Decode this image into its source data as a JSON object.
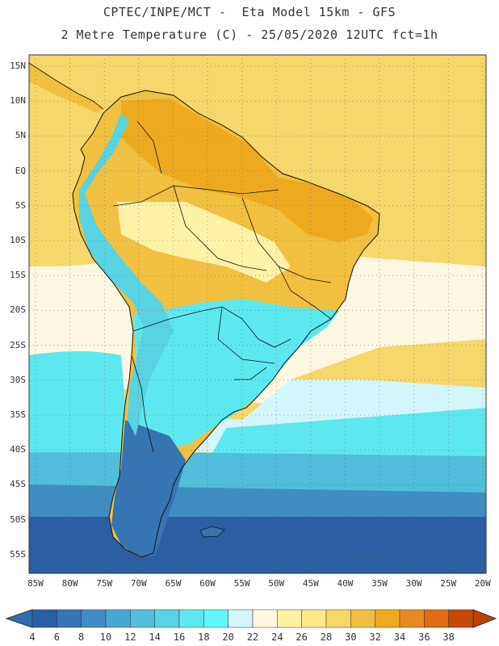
{
  "header": {
    "line1": "CPTEC/INPE/MCT -  Eta Model 15km - GFS",
    "line2": "2 Metre Temperature (C) - 25/05/2020 12UTC fct=1h"
  },
  "map": {
    "lat_labels": [
      "15N",
      "10N",
      "5N",
      "EQ",
      "5S",
      "10S",
      "15S",
      "20S",
      "25S",
      "30S",
      "35S",
      "40S",
      "45S",
      "50S",
      "55S"
    ],
    "lon_labels": [
      "85W",
      "80W",
      "75W",
      "70W",
      "65W",
      "60W",
      "55W",
      "50W",
      "45W",
      "40W",
      "35W",
      "30W",
      "25W",
      "20W"
    ]
  },
  "colorbar": {
    "labels": [
      "4",
      "6",
      "8",
      "10",
      "12",
      "14",
      "16",
      "18",
      "20",
      "22",
      "24",
      "26",
      "28",
      "30",
      "32",
      "34",
      "36",
      "38"
    ],
    "colors": [
      "#2b5fa3",
      "#3575b3",
      "#3f8dc3",
      "#47a7d1",
      "#51bedb",
      "#58d3e2",
      "#5de8ef",
      "#60f7fb",
      "#d2f6fb",
      "#fff7e2",
      "#fff2a6",
      "#fde98a",
      "#f6d76a",
      "#f0c040",
      "#eeaa1e",
      "#e68a1f",
      "#de6c10",
      "#c54a08"
    ],
    "under_color": "#2f6db0",
    "over_color": "#c04000"
  },
  "regions": {
    "deep_ocean_south": "#2b5fa3",
    "ocean_mid_south": "#3f8dc3",
    "ocean_cold": "#51bedb",
    "ocean_cyan": "#5de8ef",
    "ocean_light": "#d2f6fb",
    "tropical_ocean": "#f6d76a",
    "land_warm": "#f0c040",
    "land_hot": "#eeaa1e",
    "land_pale": "#fff2a6",
    "andes_cold": "#58d3e2",
    "patagonia": "#3575b3",
    "coast_line": "#111111"
  }
}
